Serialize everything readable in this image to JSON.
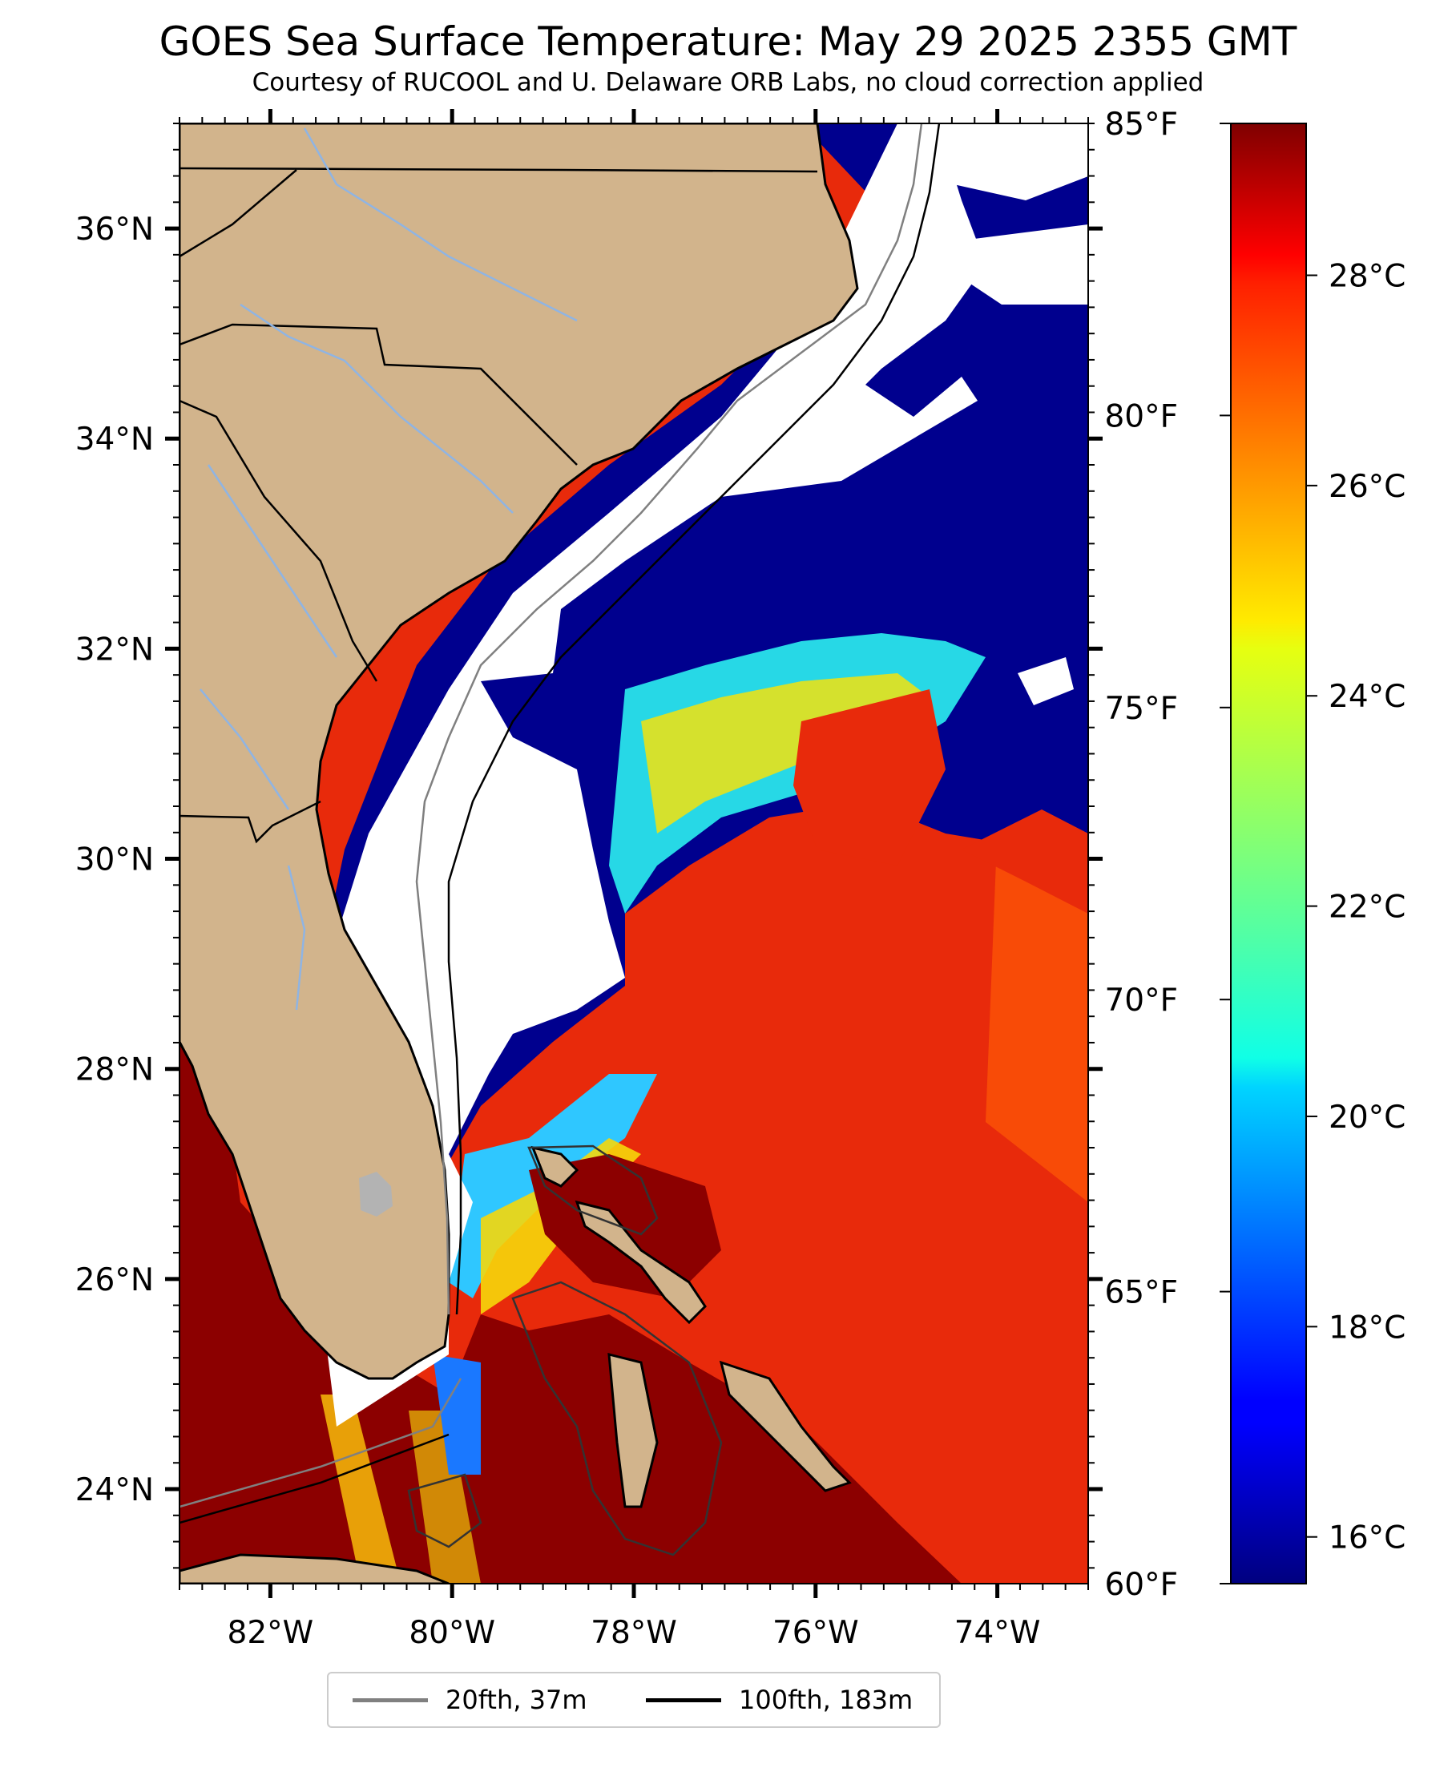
{
  "title": "GOES Sea Surface Temperature: May 29 2025 2355 GMT",
  "subtitle": "Courtesy of RUCOOL and U. Delaware ORB Labs, no cloud correction applied",
  "map": {
    "lon_range": [
      -83.0,
      -73.0
    ],
    "lat_range": [
      23.1,
      37.0
    ],
    "lat_tick_labels": [
      "36°N",
      "34°N",
      "32°N",
      "30°N",
      "28°N",
      "26°N",
      "24°N"
    ],
    "lat_ticks": [
      36,
      34,
      32,
      30,
      28,
      26,
      24
    ],
    "lon_tick_labels": [
      "82°W",
      "80°W",
      "78°W",
      "76°W",
      "74°W"
    ],
    "lon_ticks": [
      -82,
      -80,
      -78,
      -76,
      -74
    ],
    "land_color": "#d2b48c",
    "no_data_color": "#ffffff",
    "river_color": "#8fb4e3"
  },
  "colorbar": {
    "colormap": "jet",
    "celsius_labels": [
      "28°C",
      "26°C",
      "24°C",
      "22°C",
      "20°C",
      "18°C",
      "16°C"
    ],
    "celsius_ticks": [
      28,
      26,
      24,
      22,
      20,
      18,
      16
    ],
    "fahrenheit_labels": [
      "85°F",
      "80°F",
      "75°F",
      "70°F",
      "65°F",
      "60°F"
    ],
    "fahrenheit_ticks": [
      85,
      80,
      75,
      70,
      65,
      60
    ],
    "range_f": [
      60,
      85
    ]
  },
  "legend": {
    "items": [
      {
        "label": "20fth, 37m",
        "color": "#808080"
      },
      {
        "label": "100fth, 183m",
        "color": "#000000"
      }
    ]
  }
}
